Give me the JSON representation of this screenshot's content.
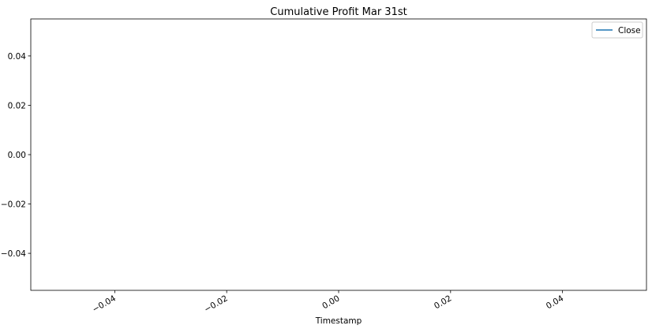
{
  "chart_data": {
    "type": "line",
    "title": "Cumulative Profit Mar 31st",
    "xlabel": "Timestamp",
    "ylabel": "",
    "xlim": [
      -0.055,
      0.055
    ],
    "ylim": [
      -0.055,
      0.055
    ],
    "x_ticks": [
      -0.04,
      -0.02,
      0.0,
      0.02,
      0.04
    ],
    "x_tick_labels": [
      "−0.04",
      "−0.02",
      "0.00",
      "0.02",
      "0.04"
    ],
    "y_ticks": [
      -0.04,
      -0.02,
      0.0,
      0.02,
      0.04
    ],
    "y_tick_labels": [
      "−0.04",
      "−0.02",
      "0.00",
      "0.02",
      "0.04"
    ],
    "x_tick_rotation": 30,
    "grid": false,
    "legend_position": "top-right",
    "series": [
      {
        "name": "Close",
        "color": "#1f77b4",
        "x": [],
        "values": []
      }
    ]
  }
}
